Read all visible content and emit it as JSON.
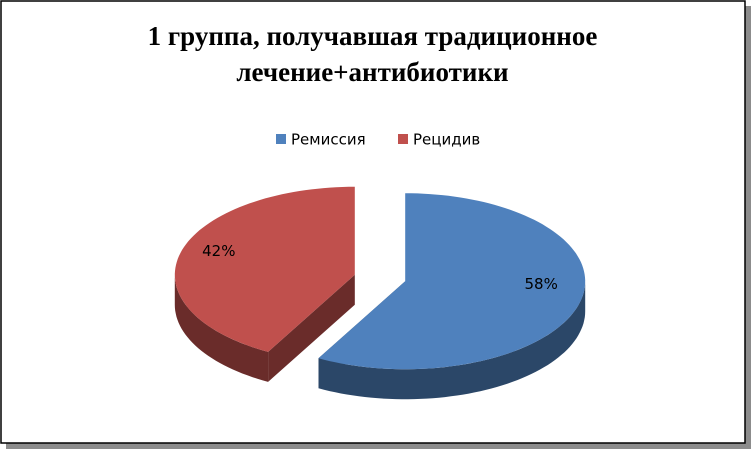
{
  "chart_data": {
    "type": "pie3d",
    "title": "1 группа, получавшая традиционное лечение+антибиотики",
    "categories": [
      "Ремиссия",
      "Рецидив"
    ],
    "values": [
      58,
      42
    ],
    "value_labels": [
      "58%",
      "42%"
    ],
    "colors": [
      "#4f81bd",
      "#c0504d"
    ],
    "legend": "top"
  }
}
